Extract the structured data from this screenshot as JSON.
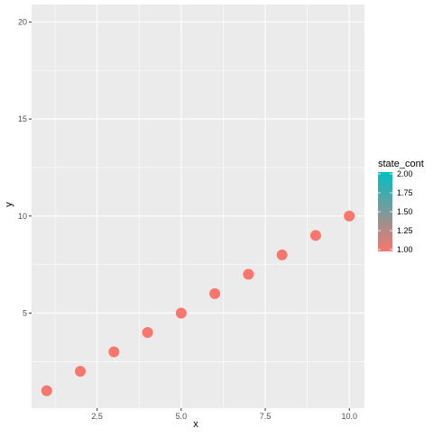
{
  "chart_data": {
    "type": "scatter",
    "title": "",
    "xlabel": "x",
    "ylabel": "y",
    "xlim": [
      0.55,
      10.45
    ],
    "ylim": [
      0.1,
      20.9
    ],
    "x_ticks": [
      2.5,
      5.0,
      7.5,
      10.0
    ],
    "x_tick_labels": [
      "2.5",
      "5.0",
      "7.5",
      "10.0"
    ],
    "y_ticks": [
      5,
      10,
      15,
      20
    ],
    "y_tick_labels": [
      "5",
      "10",
      "15",
      "20"
    ],
    "grid": true,
    "series": [
      {
        "x": [
          1,
          2,
          3,
          4,
          5,
          6,
          7,
          8,
          9,
          10
        ],
        "y": [
          1,
          2,
          3,
          4,
          5,
          6,
          7,
          8,
          9,
          10
        ],
        "state_cont": [
          1,
          1,
          1,
          1,
          1,
          1,
          1,
          1,
          1,
          1
        ]
      }
    ],
    "point_color": "#F8766D",
    "legend": {
      "title": "state_cont",
      "placement": "right",
      "type": "colorbar",
      "range": [
        1.0,
        2.0
      ],
      "low_color": "#F8766D",
      "high_color": "#00BFC4",
      "ticks": [
        1.0,
        1.25,
        1.5,
        1.75,
        2.0
      ],
      "tick_labels": [
        "1.00",
        "1.25",
        "1.50",
        "1.75",
        "2.00"
      ]
    },
    "panel_background": "#EBEBEB",
    "grid_color": "#FFFFFF"
  }
}
